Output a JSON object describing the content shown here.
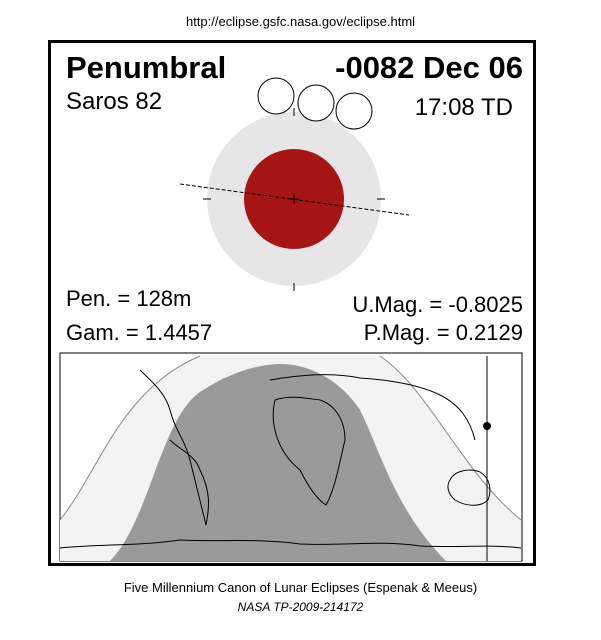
{
  "header": {
    "url": "http://eclipse.gsfc.nasa.gov/eclipse.html"
  },
  "eclipse": {
    "type": "Penumbral",
    "date": "-0082 Dec 06",
    "saros": "Saros  82",
    "time": "17:08 TD",
    "pen_duration": "Pen. = 128m",
    "gamma": "Gam. = 1.4457",
    "umag": "U.Mag. = -0.8025",
    "pmag": "P.Mag. = 0.2129"
  },
  "colors": {
    "umbra": "#a71515",
    "penumbra": "#e6e6e6",
    "night_map": "#9a9a9a",
    "twilight_map": "#f3f3f3"
  },
  "footer": {
    "line1": "Five Millennium Canon of Lunar Eclipses (Espenak & Meeus)",
    "line2": "NASA TP-2009-214172"
  }
}
